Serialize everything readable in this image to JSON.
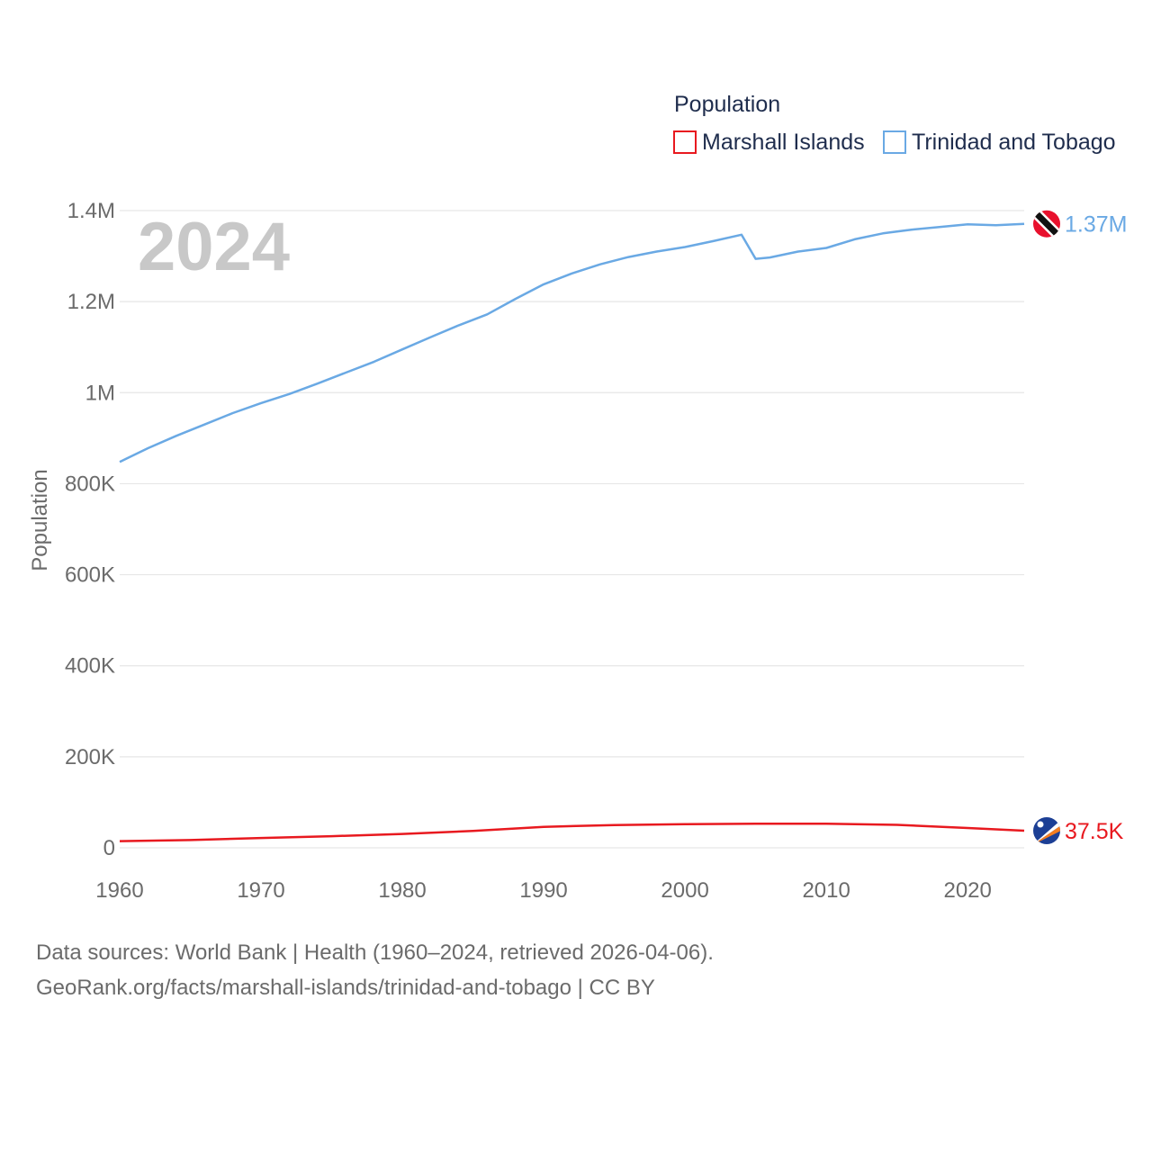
{
  "chart_data": {
    "type": "line",
    "title": "Population",
    "xlabel": "",
    "ylabel": "Population",
    "xlim": [
      1960,
      2024
    ],
    "ylim": [
      0,
      1400000
    ],
    "x_ticks": [
      1960,
      1970,
      1980,
      1990,
      2000,
      2010,
      2020
    ],
    "x_tick_labels": [
      "1960",
      "1970",
      "1980",
      "1990",
      "2000",
      "2010",
      "2020"
    ],
    "y_ticks": [
      0,
      200000,
      400000,
      600000,
      800000,
      1000000,
      1200000,
      1400000
    ],
    "y_tick_labels": [
      "0",
      "200K",
      "400K",
      "600K",
      "800K",
      "1M",
      "1.2M",
      "1.4M"
    ],
    "grid": true,
    "legend_title": "Population",
    "legend_position": "top-right",
    "current_year": "2024",
    "series": [
      {
        "name": "Marshall Islands",
        "color": "#e8191f",
        "end_label": "37.5K",
        "flag_icon": "marshall-islands-flag-icon",
        "points": [
          [
            1960,
            14600
          ],
          [
            1965,
            17000
          ],
          [
            1970,
            21500
          ],
          [
            1975,
            25500
          ],
          [
            1980,
            30500
          ],
          [
            1985,
            37000
          ],
          [
            1990,
            46000
          ],
          [
            1995,
            50000
          ],
          [
            2000,
            52000
          ],
          [
            2005,
            53000
          ],
          [
            2010,
            53000
          ],
          [
            2015,
            50500
          ],
          [
            2020,
            43500
          ],
          [
            2024,
            37500
          ]
        ]
      },
      {
        "name": "Trinidad and Tobago",
        "color": "#6aa9e4",
        "end_label": "1.37M",
        "flag_icon": "trinidad-and-tobago-flag-icon",
        "points": [
          [
            1960,
            848000
          ],
          [
            1962,
            878000
          ],
          [
            1964,
            905000
          ],
          [
            1966,
            930000
          ],
          [
            1968,
            955000
          ],
          [
            1970,
            977000
          ],
          [
            1972,
            997000
          ],
          [
            1974,
            1020000
          ],
          [
            1976,
            1044000
          ],
          [
            1978,
            1068000
          ],
          [
            1980,
            1095000
          ],
          [
            1982,
            1122000
          ],
          [
            1984,
            1148000
          ],
          [
            1986,
            1172000
          ],
          [
            1988,
            1206000
          ],
          [
            1990,
            1238000
          ],
          [
            1992,
            1262000
          ],
          [
            1994,
            1282000
          ],
          [
            1996,
            1298000
          ],
          [
            1998,
            1310000
          ],
          [
            2000,
            1320000
          ],
          [
            2002,
            1333000
          ],
          [
            2004,
            1347000
          ],
          [
            2005,
            1294000
          ],
          [
            2006,
            1297000
          ],
          [
            2008,
            1310000
          ],
          [
            2010,
            1318000
          ],
          [
            2012,
            1337000
          ],
          [
            2014,
            1350000
          ],
          [
            2016,
            1358000
          ],
          [
            2018,
            1364000
          ],
          [
            2020,
            1370000
          ],
          [
            2022,
            1368000
          ],
          [
            2024,
            1371000
          ]
        ]
      }
    ]
  },
  "footer": {
    "source_line": "Data sources: World Bank | Health (1960–2024, retrieved 2026-04-06).",
    "url_line": "GeoRank.org/facts/marshall-islands/trinidad-and-tobago | CC BY"
  }
}
